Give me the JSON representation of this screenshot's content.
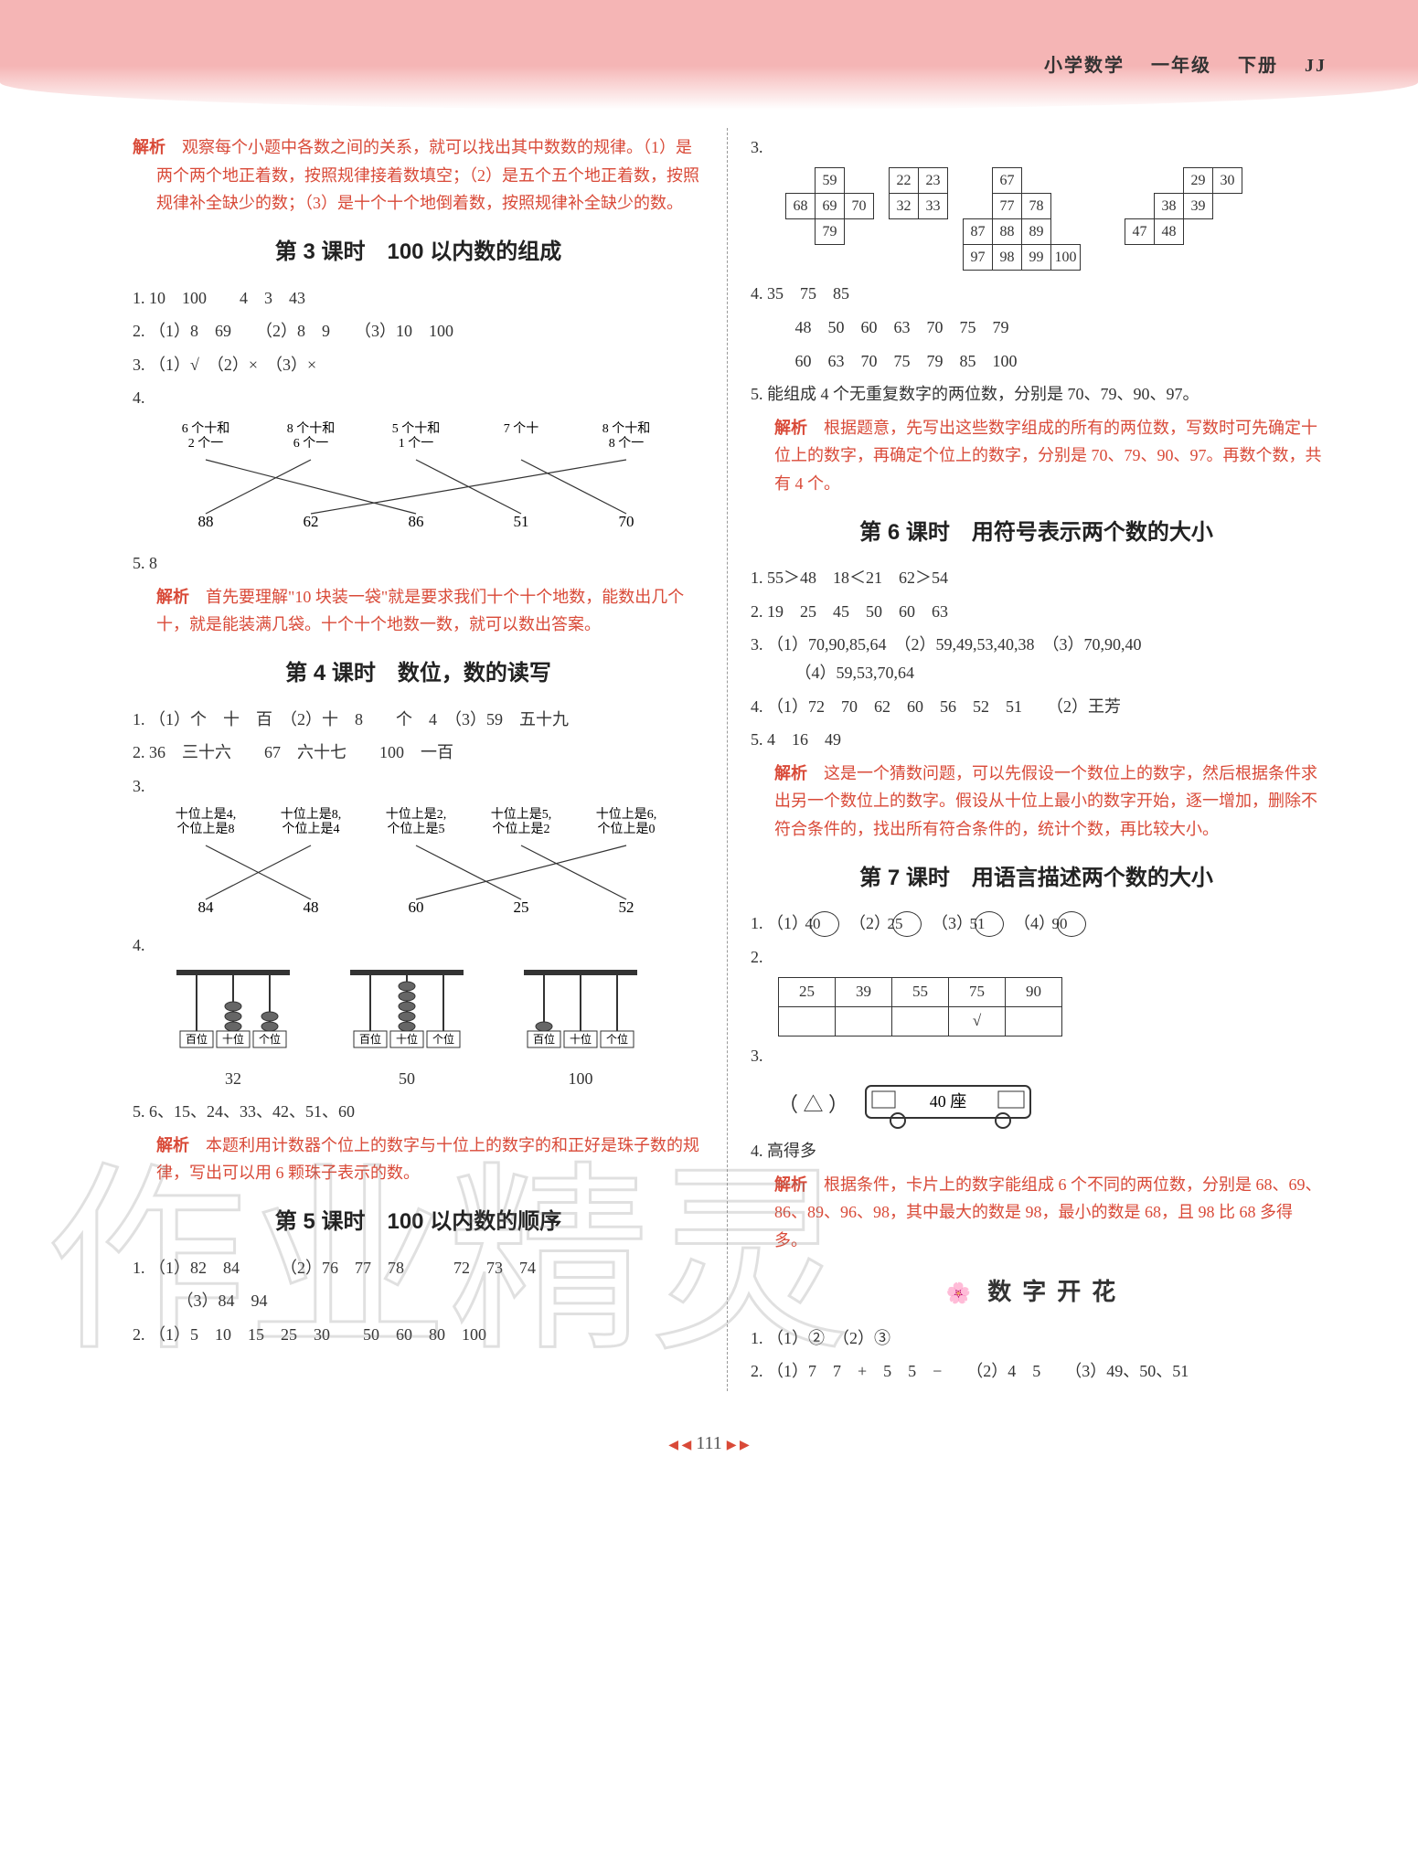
{
  "header": {
    "subject": "小学数学",
    "grade": "一年级",
    "volume": "下册",
    "code": "JJ"
  },
  "colors": {
    "accent": "#d94a38",
    "text": "#333333",
    "headerBg": "#f5b5b5"
  },
  "left": {
    "intro_analysis": {
      "label": "解析",
      "text": "　观察每个小题中各数之间的关系，就可以找出其中数数的规律。（1）是两个两个地正着数，按照规律接着数填空；（2）是五个五个地正着数，按照规律补全缺少的数；（3）是十个十个地倒着数，按照规律补全缺少的数。"
    },
    "s3": {
      "title": "第 3 课时　100 以内数的组成",
      "q1": "1. 10　100　　4　3　43",
      "q2": "2. （1）8　69　　（2）8　9　　（3）10　100",
      "q3": "3. （1）√　（2）×　（3）×",
      "q4": {
        "prefix": "4.",
        "tops": [
          "6 个十和\n2 个一",
          "8 个十和\n6 个一",
          "5 个十和\n1 个一",
          "7 个十",
          "8 个十和\n8 个一"
        ],
        "bottoms": [
          "88",
          "62",
          "86",
          "51",
          "70"
        ],
        "edges": [
          [
            0,
            2
          ],
          [
            1,
            0
          ],
          [
            2,
            3
          ],
          [
            3,
            4
          ],
          [
            4,
            1
          ]
        ]
      },
      "q5": "5. 8",
      "q5_analysis": {
        "label": "解析",
        "text": "　首先要理解\"10 块装一袋\"就是要求我们十个十个地数，能数出几个十，就是能装满几袋。十个十个地数一数，就可以数出答案。"
      }
    },
    "s4": {
      "title": "第 4 课时　数位，数的读写",
      "q1": "1. （1）个　十　百　（2）十　8　　个　4　（3）59　五十九",
      "q2": "2. 36　三十六　　67　六十七　　100　一百",
      "q3": {
        "prefix": "3.",
        "tops": [
          "十位上是4,\n个位上是8",
          "十位上是8,\n个位上是4",
          "十位上是2,\n个位上是5",
          "十位上是5,\n个位上是2",
          "十位上是6,\n个位上是0"
        ],
        "bottoms": [
          "84",
          "48",
          "60",
          "25",
          "52"
        ],
        "edges": [
          [
            0,
            1
          ],
          [
            1,
            0
          ],
          [
            2,
            3
          ],
          [
            3,
            4
          ],
          [
            4,
            2
          ]
        ]
      },
      "q4": {
        "prefix": "4.",
        "abacus": [
          {
            "beads": [
              0,
              3,
              2
            ],
            "label": "32",
            "places": [
              "百位",
              "十位",
              "个位"
            ]
          },
          {
            "beads": [
              0,
              5,
              0
            ],
            "label": "50",
            "places": [
              "百位",
              "十位",
              "个位"
            ]
          },
          {
            "beads": [
              1,
              0,
              0
            ],
            "label": "100",
            "places": [
              "百位",
              "十位",
              "个位"
            ]
          }
        ]
      },
      "q5": "5. 6、15、24、33、42、51、60",
      "q5_analysis": {
        "label": "解析",
        "text": "　本题利用计数器个位上的数字与十位上的数字的和正好是珠子数的规律，写出可以用 6 颗珠子表示的数。"
      }
    },
    "s5": {
      "title": "第 5 课时　100 以内数的顺序",
      "q1a": "1. （1）82　84　　　（2）76　77　78　　　72　73　74",
      "q1b": "　 （3）84　94",
      "q2": "2. （1）5　10　15　25　30　　50　60　80　100"
    }
  },
  "right": {
    "q3": {
      "prefix": "3.",
      "grids": [
        {
          "rows": [
            [
              "",
              "59",
              ""
            ],
            [
              "68",
              "69",
              "70"
            ],
            [
              "",
              "79",
              ""
            ]
          ]
        },
        {
          "rows": [
            [
              "22",
              "23"
            ],
            [
              "32",
              "33"
            ]
          ]
        },
        {
          "rows": [
            [
              "",
              "67",
              "",
              "",
              ""
            ],
            [
              "",
              "77",
              "78",
              "",
              ""
            ],
            [
              "87",
              "88",
              "89",
              "",
              ""
            ],
            [
              "97",
              "98",
              "99",
              "100",
              ""
            ]
          ]
        },
        {
          "rows": [
            [
              "",
              "",
              "29",
              "30"
            ],
            [
              "",
              "38",
              "39",
              ""
            ],
            [
              "47",
              "48",
              "",
              ""
            ]
          ]
        }
      ]
    },
    "q4": {
      "l1": "4. 35　75　85",
      "l2": "　 48　50　60　63　70　75　79",
      "l3": "　 60　63　70　75　79　85　100"
    },
    "q5": "5. 能组成 4 个无重复数字的两位数，分别是 70、79、90、97。",
    "q5_analysis": {
      "label": "解析",
      "text": "　根据题意，先写出这些数字组成的所有的两位数，写数时可先确定十位上的数字，再确定个位上的数字，分别是 70、79、90、97。再数个数，共有 4 个。"
    },
    "s6": {
      "title": "第 6 课时　用符号表示两个数的大小",
      "q1": "1. 55＞48　18＜21　62＞54",
      "q2": "2. 19　25　45　50　60　63",
      "q3": "3. （1）70,90,85,64　（2）59,49,53,40,38　（3）70,90,40\n　 （4）59,53,70,64",
      "q4": "4. （1）72　70　62　60　56　52　51　　（2）王芳",
      "q5": "5. 4　16　49",
      "q5_analysis": {
        "label": "解析",
        "text": "　这是一个猜数问题，可以先假设一个数位上的数字，然后根据条件求出另一个数位上的数字。假设从十位上最小的数字开始，逐一增加，删除不符合条件的，找出所有符合条件的，统计个数，再比较大小。"
      }
    },
    "s7": {
      "title": "第 7 课时　用语言描述两个数的大小",
      "q1": {
        "text": "1. ",
        "parts": [
          "（1）",
          "40",
          "　（2）",
          "25",
          "　（3）",
          "51",
          "　（4）",
          "90"
        ]
      },
      "q2": {
        "prefix": "2.",
        "headers": [
          "25",
          "39",
          "55",
          "75",
          "90"
        ],
        "check_index": 3
      },
      "q3": {
        "prefix": "3.",
        "symbol": "（ △ ）",
        "seats": "40 座"
      },
      "q4": "4. 高得多",
      "q4_analysis": {
        "label": "解析",
        "text": "　根据条件，卡片上的数字能组成 6 个不同的两位数，分别是 68、69、86、89、96、98，其中最大的数是 98，最小的数是 68，且 98 比 68 多得多。"
      }
    },
    "flower": {
      "title": "数字开花",
      "q1": "1. （1）②　（2）③",
      "q2": "2. （1）7　7　+　5　5　−　　（2）4　5　　（3）49、50、51"
    }
  },
  "footer": {
    "page": "111"
  }
}
